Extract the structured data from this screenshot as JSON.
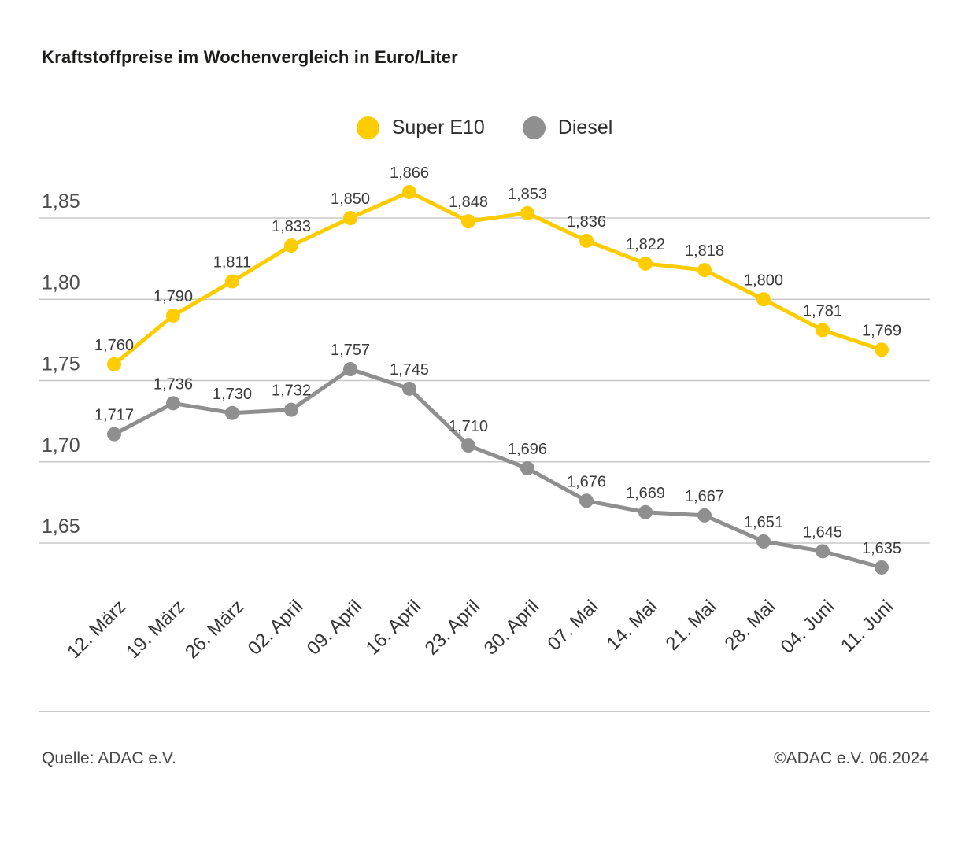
{
  "title": "Kraftstoffpreise im Wochenvergleich in Euro/Liter",
  "legend": [
    {
      "label": "Super E10",
      "color": "#FFCC00"
    },
    {
      "label": "Diesel",
      "color": "#8f8f8f"
    }
  ],
  "footer": {
    "source": "Quelle: ADAC e.V.",
    "copyright": "©ADAC e.V. 06.2024"
  },
  "chart_data": {
    "type": "line",
    "title": "Kraftstoffpreise im Wochenvergleich in Euro/Liter",
    "categories": [
      "12. März",
      "19. März",
      "26. März",
      "02. April",
      "09. April",
      "16. April",
      "23. April",
      "30. April",
      "07. Mai",
      "14. Mai",
      "21. Mai",
      "28. Mai",
      "04. Juni",
      "11. Juni"
    ],
    "series": [
      {
        "name": "Super E10",
        "color": "#FFCC00",
        "values": [
          1.76,
          1.79,
          1.811,
          1.833,
          1.85,
          1.866,
          1.848,
          1.853,
          1.836,
          1.822,
          1.818,
          1.8,
          1.781,
          1.769
        ],
        "labels": [
          "1,760",
          "1,790",
          "1,811",
          "1,833",
          "1,850",
          "1,866",
          "1,848",
          "1,853",
          "1,836",
          "1,822",
          "1,818",
          "1,800",
          "1,781",
          "1,769"
        ]
      },
      {
        "name": "Diesel",
        "color": "#8f8f8f",
        "values": [
          1.717,
          1.736,
          1.73,
          1.732,
          1.757,
          1.745,
          1.71,
          1.696,
          1.676,
          1.669,
          1.667,
          1.651,
          1.645,
          1.635
        ],
        "labels": [
          "1,717",
          "1,736",
          "1,730",
          "1,732",
          "1,757",
          "1,745",
          "1,710",
          "1,696",
          "1,676",
          "1,669",
          "1,667",
          "1,651",
          "1,645",
          "1,635"
        ]
      }
    ],
    "xlabel": "",
    "ylabel": "Euro/Liter",
    "yticks": [
      1.85,
      1.8,
      1.75,
      1.7,
      1.65
    ],
    "ytick_labels": [
      "1,85",
      "1,80",
      "1,75",
      "1,70",
      "1,65"
    ],
    "ylim": [
      1.62,
      1.88
    ],
    "grid": true,
    "legend_position": "top",
    "colors": {
      "gridline": "#c8c8c8",
      "tick_text": "#4d4d4d",
      "point_label_text": "#3a3a3a",
      "x_label_text": "#333333"
    }
  }
}
